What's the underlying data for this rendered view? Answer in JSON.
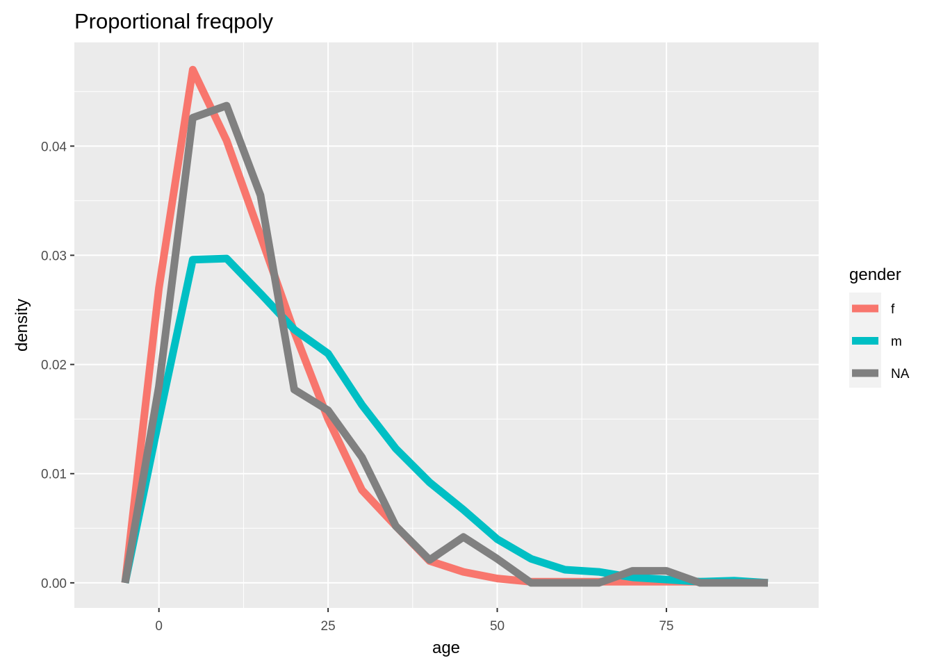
{
  "chart_data": {
    "type": "line",
    "title": "Proportional freqpoly",
    "xlabel": "age",
    "ylabel": "density",
    "xlim": [
      -12.5,
      97.5
    ],
    "ylim": [
      -0.0023,
      0.0495
    ],
    "x_ticks": [
      0,
      25,
      50,
      75
    ],
    "x_tick_labels": [
      "0",
      "25",
      "50",
      "75"
    ],
    "y_ticks": [
      0.0,
      0.01,
      0.02,
      0.03,
      0.04
    ],
    "y_tick_labels": [
      "0.00",
      "0.01",
      "0.02",
      "0.03",
      "0.04"
    ],
    "grid": true,
    "legend": {
      "title": "gender",
      "position": "right"
    },
    "x": [
      -5,
      0,
      5,
      10,
      15,
      20,
      25,
      30,
      35,
      40,
      45,
      50,
      55,
      60,
      65,
      70,
      75,
      80,
      85,
      90
    ],
    "series": [
      {
        "name": "f",
        "color": "#F8766D",
        "values": [
          0.0,
          0.027,
          0.047,
          0.0405,
          0.0318,
          0.023,
          0.015,
          0.0085,
          0.0052,
          0.002,
          0.001,
          0.0004,
          0.0001,
          0.0001,
          0.0001,
          0.0001,
          0.0001,
          0.0001,
          0.0001,
          0.0
        ]
      },
      {
        "name": "m",
        "color": "#00BFC4",
        "values": [
          0.0,
          0.015,
          0.0296,
          0.0297,
          0.0265,
          0.0232,
          0.021,
          0.0163,
          0.0123,
          0.0092,
          0.0067,
          0.004,
          0.0022,
          0.0012,
          0.001,
          0.0005,
          0.0003,
          0.0001,
          0.0002,
          0.0
        ]
      },
      {
        "name": "NA",
        "color": "#808080",
        "values": [
          0.0,
          0.018,
          0.0426,
          0.0437,
          0.0355,
          0.0177,
          0.0158,
          0.0115,
          0.0052,
          0.0021,
          0.0042,
          0.0022,
          0.0,
          0.0,
          0.0,
          0.0011,
          0.0011,
          0.0,
          0.0,
          0.0
        ]
      }
    ]
  }
}
